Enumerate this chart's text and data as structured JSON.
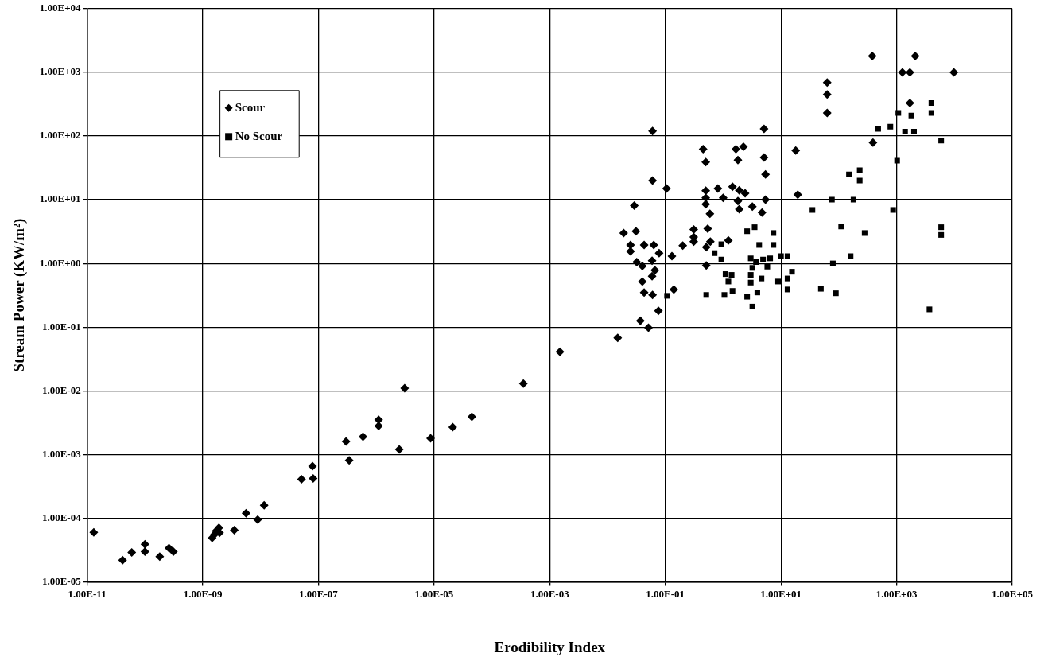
{
  "chart_data": {
    "type": "scatter",
    "xlabel": "Erodibility Index",
    "ylabel": "Stream Power (KW/m²)",
    "log": "xy",
    "grid": true,
    "legend": "top left",
    "xlim": [
      1e-11,
      100000.0
    ],
    "ylim": [
      1e-05,
      10000.0
    ],
    "xticks": [
      {
        "value": 1e-11,
        "label": "1.00E-11"
      },
      {
        "value": 1e-09,
        "label": "1.00E-09"
      },
      {
        "value": 1e-07,
        "label": "1.00E-07"
      },
      {
        "value": 1e-05,
        "label": "1.00E-05"
      },
      {
        "value": 0.001,
        "label": "1.00E-03"
      },
      {
        "value": 0.1,
        "label": "1.00E-01"
      },
      {
        "value": 10,
        "label": "1.00E+01"
      },
      {
        "value": 1000,
        "label": "1.00E+03"
      },
      {
        "value": 100000,
        "label": "1.00E+05"
      }
    ],
    "yticks": [
      {
        "value": 1e-05,
        "label": "1.00E-05"
      },
      {
        "value": 0.0001,
        "label": "1.00E-04"
      },
      {
        "value": 0.001,
        "label": "1.00E-03"
      },
      {
        "value": 0.01,
        "label": "1.00E-02"
      },
      {
        "value": 0.1,
        "label": "1.00E-01"
      },
      {
        "value": 1,
        "label": "1.00E+00"
      },
      {
        "value": 10,
        "label": "1.00E+01"
      },
      {
        "value": 100,
        "label": "1.00E+02"
      },
      {
        "value": 1000,
        "label": "1.00E+03"
      },
      {
        "value": 10000,
        "label": "1.00E+04"
      }
    ],
    "series": [
      {
        "name": "Scour",
        "color": "#000000",
        "marker": "diamond",
        "x": [
          1.3e-11,
          4.1e-11,
          5.9e-11,
          1e-10,
          1e-10,
          1.8e-10,
          2.6e-10,
          3.1e-10,
          1.45e-09,
          1.6e-09,
          1.7e-09,
          1.9e-09,
          1.95e-09,
          3.5e-09,
          5.6e-09,
          8.9e-09,
          1.15e-08,
          5.1e-08,
          7.9e-08,
          8.1e-08,
          3e-07,
          3.4e-07,
          5.9e-07,
          1.1e-06,
          1.1e-06,
          2.5e-06,
          3.1e-06,
          8.7e-06,
          2.1e-05,
          4.5e-05,
          0.00035,
          0.0015,
          0.06,
          5.1,
          0.45,
          0.5,
          1.66,
          2.24,
          1.8,
          5.1,
          18,
          5.4,
          0.06,
          0.105,
          19.5,
          0.5,
          0.81,
          1.0,
          0.5,
          0.5,
          0.59,
          1.45,
          1.9,
          2.4,
          1.8,
          1.9,
          3.2,
          5.4,
          4.7,
          0.029,
          0.019,
          0.031,
          0.025,
          0.025,
          0.043,
          0.063,
          0.078,
          0.13,
          0.032,
          0.04,
          0.059,
          0.066,
          0.059,
          0.04,
          0.043,
          0.06,
          0.14,
          0.076,
          0.037,
          0.051,
          0.015,
          0.2,
          0.31,
          0.31,
          0.31,
          0.54,
          0.6,
          0.51,
          1.23,
          0.51,
          380,
          2100,
          1260,
          1700,
          9800,
          63,
          63,
          63,
          1700,
          390
        ],
        "values": [
          6e-05,
          2.2e-05,
          2.9e-05,
          3.9e-05,
          3e-05,
          2.5e-05,
          3.4e-05,
          3e-05,
          4.9e-05,
          5.6e-05,
          6.3e-05,
          7.1e-05,
          5.9e-05,
          6.5e-05,
          0.00012,
          9.5e-05,
          0.00016,
          0.00041,
          0.00066,
          0.00042,
          0.0016,
          0.00081,
          0.0019,
          0.0035,
          0.0028,
          0.0012,
          0.011,
          0.0018,
          0.0027,
          0.0039,
          0.013,
          0.041,
          120,
          129,
          62,
          39,
          62,
          68,
          42,
          46,
          59,
          25,
          20,
          15,
          12,
          13.8,
          15,
          10.7,
          10.7,
          8.5,
          6.0,
          16,
          14,
          12.6,
          9.5,
          7.1,
          7.8,
          10,
          6.3,
          8.1,
          3.0,
          3.2,
          1.95,
          1.55,
          1.95,
          1.95,
          1.45,
          1.3,
          1.05,
          0.91,
          1.1,
          0.78,
          0.63,
          0.52,
          0.35,
          0.32,
          0.39,
          0.18,
          0.126,
          0.098,
          0.068,
          1.9,
          3.4,
          2.6,
          2.2,
          3.5,
          2.2,
          1.8,
          2.3,
          0.93,
          1800,
          1800,
          1000,
          1000,
          1000,
          690,
          450,
          230,
          330,
          79
        ]
      },
      {
        "name": "No Scour",
        "color": "#000000",
        "marker": "square",
        "x": [
          2.6,
          3.5,
          4.2,
          7.4,
          7.4,
          0.93,
          0.71,
          0.93,
          3.0,
          3.7,
          4.9,
          6.5,
          10,
          13,
          3.2,
          5.8,
          1.1,
          1.4,
          1.23,
          3.0,
          3.0,
          4.6,
          8.9,
          15.5,
          13,
          0.51,
          1.05,
          1.45,
          2.6,
          3.9,
          3.2,
          0.107,
          4000,
          4000,
          1070,
          1800,
          480,
          780,
          1400,
          2000,
          5900,
          1020,
          150,
          230,
          230,
          76,
          180,
          35,
          870,
          110,
          280,
          5900,
          5900,
          160,
          79,
          13,
          49,
          89,
          3700
        ],
        "values": [
          3.2,
          3.7,
          1.95,
          3.0,
          1.95,
          2.0,
          1.45,
          1.15,
          1.2,
          1.05,
          1.15,
          1.2,
          1.3,
          1.3,
          0.85,
          0.89,
          0.68,
          0.66,
          0.52,
          0.66,
          0.5,
          0.58,
          0.52,
          0.74,
          0.39,
          0.32,
          0.32,
          0.37,
          0.3,
          0.35,
          0.21,
          0.31,
          330,
          230,
          230,
          210,
          130,
          140,
          117,
          117,
          85,
          41,
          25,
          29,
          20,
          10,
          10,
          6.9,
          6.9,
          3.8,
          3.0,
          3.7,
          2.8,
          1.3,
          1.0,
          0.58,
          0.4,
          0.34,
          0.19
        ]
      }
    ]
  }
}
